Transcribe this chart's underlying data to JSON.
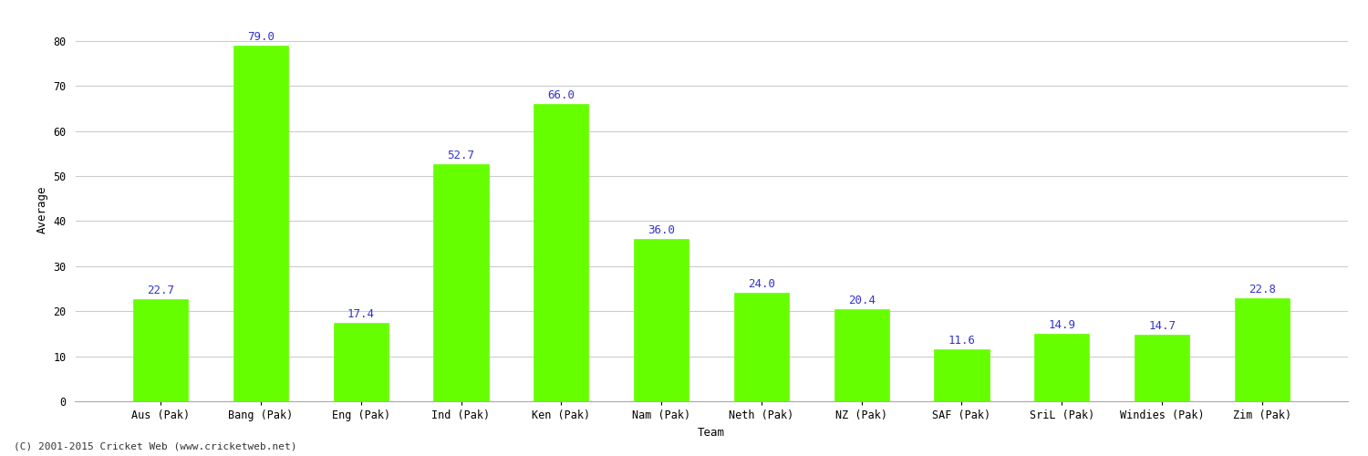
{
  "categories": [
    "Aus (Pak)",
    "Bang (Pak)",
    "Eng (Pak)",
    "Ind (Pak)",
    "Ken (Pak)",
    "Nam (Pak)",
    "Neth (Pak)",
    "NZ (Pak)",
    "SAF (Pak)",
    "SriL (Pak)",
    "Windies (Pak)",
    "Zim (Pak)"
  ],
  "values": [
    22.7,
    79.0,
    17.4,
    52.7,
    66.0,
    36.0,
    24.0,
    20.4,
    11.6,
    14.9,
    14.7,
    22.8
  ],
  "bar_color": "#66ff00",
  "bar_edge_color": "#66ff00",
  "label_color": "#3333cc",
  "xlabel": "Team",
  "ylabel": "Average",
  "ylim": [
    0,
    85
  ],
  "yticks": [
    0,
    10,
    20,
    30,
    40,
    50,
    60,
    70,
    80
  ],
  "background_color": "#ffffff",
  "grid_color": "#cccccc",
  "footer": "(C) 2001-2015 Cricket Web (www.cricketweb.net)",
  "label_fontsize": 9,
  "axis_label_fontsize": 9,
  "tick_fontsize": 8.5,
  "footer_fontsize": 8
}
